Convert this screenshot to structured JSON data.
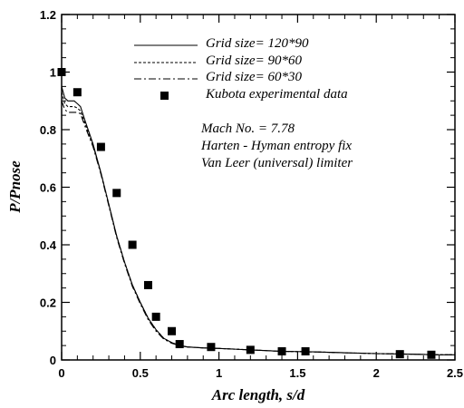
{
  "chart_data": {
    "type": "line",
    "xlabel": "Arc length, s/d",
    "ylabel": "P/Pnose",
    "xlim": [
      0,
      2.5
    ],
    "ylim": [
      0,
      1.2
    ],
    "x_ticks": [
      "0",
      "0.5",
      "1",
      "1.5",
      "2",
      "2.5"
    ],
    "y_ticks": [
      "0",
      "0.2",
      "0.4",
      "0.6",
      "0.8",
      "1",
      "1.2"
    ],
    "grid": false,
    "legend_position": "top-right",
    "series": [
      {
        "name": "Grid size= 120*90",
        "style": "solid",
        "x": [
          0,
          0.02,
          0.04,
          0.06,
          0.08,
          0.1,
          0.12,
          0.15,
          0.2,
          0.25,
          0.3,
          0.35,
          0.4,
          0.45,
          0.5,
          0.55,
          0.6,
          0.65,
          0.7,
          0.75,
          0.8,
          0.9,
          1.0,
          1.2,
          1.4,
          1.6,
          1.8,
          2.0,
          2.2,
          2.4,
          2.5
        ],
        "y": [
          0.95,
          0.91,
          0.9,
          0.9,
          0.9,
          0.89,
          0.88,
          0.83,
          0.75,
          0.65,
          0.54,
          0.43,
          0.34,
          0.26,
          0.2,
          0.145,
          0.105,
          0.075,
          0.06,
          0.05,
          0.045,
          0.042,
          0.04,
          0.035,
          0.03,
          0.028,
          0.025,
          0.022,
          0.02,
          0.018,
          0.018
        ]
      },
      {
        "name": "Grid size= 90*60",
        "style": "dashed",
        "x": [
          0,
          0.02,
          0.04,
          0.06,
          0.08,
          0.1,
          0.12,
          0.15,
          0.2,
          0.25,
          0.3,
          0.35,
          0.4,
          0.45,
          0.5,
          0.55,
          0.6,
          0.65,
          0.7,
          0.75,
          0.8,
          0.9,
          1.0,
          1.2,
          1.4,
          1.6,
          1.8,
          2.0,
          2.2,
          2.4,
          2.5
        ],
        "y": [
          0.93,
          0.89,
          0.88,
          0.88,
          0.88,
          0.875,
          0.865,
          0.82,
          0.745,
          0.65,
          0.54,
          0.43,
          0.34,
          0.26,
          0.2,
          0.145,
          0.105,
          0.075,
          0.06,
          0.05,
          0.045,
          0.042,
          0.04,
          0.035,
          0.03,
          0.028,
          0.025,
          0.022,
          0.02,
          0.018,
          0.018
        ]
      },
      {
        "name": "Grid size= 60*30",
        "style": "dashdot",
        "x": [
          0,
          0.02,
          0.04,
          0.06,
          0.08,
          0.1,
          0.12,
          0.15,
          0.2,
          0.25,
          0.3,
          0.35,
          0.4,
          0.45,
          0.5,
          0.55,
          0.6,
          0.65,
          0.7,
          0.75,
          0.8,
          0.9,
          1.0,
          1.2,
          1.4,
          1.6,
          1.8,
          2.0,
          2.2,
          2.4,
          2.5
        ],
        "y": [
          0.9,
          0.87,
          0.86,
          0.86,
          0.86,
          0.86,
          0.855,
          0.81,
          0.74,
          0.645,
          0.535,
          0.425,
          0.335,
          0.255,
          0.195,
          0.14,
          0.1,
          0.072,
          0.058,
          0.05,
          0.045,
          0.042,
          0.04,
          0.035,
          0.03,
          0.028,
          0.025,
          0.022,
          0.02,
          0.018,
          0.018
        ]
      },
      {
        "name": "Kubota experimental data",
        "style": "markers",
        "x": [
          0,
          0.1,
          0.25,
          0.35,
          0.45,
          0.55,
          0.6,
          0.7,
          0.75,
          0.95,
          1.2,
          1.4,
          1.55,
          2.15,
          2.35
        ],
        "y": [
          1.0,
          0.93,
          0.74,
          0.58,
          0.4,
          0.26,
          0.15,
          0.1,
          0.055,
          0.045,
          0.035,
          0.03,
          0.03,
          0.02,
          0.018
        ]
      }
    ],
    "annotations": [
      "Mach No. = 7.78",
      "Harten - Hyman entropy fix",
      "Van Leer (universal) limiter"
    ]
  }
}
